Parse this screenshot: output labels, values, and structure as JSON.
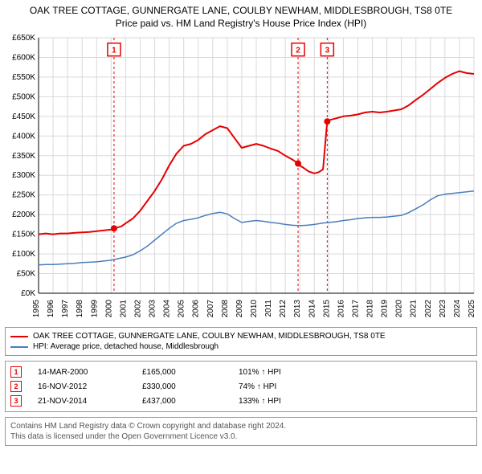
{
  "title_line1": "OAK TREE COTTAGE, GUNNERGATE LANE, COULBY NEWHAM, MIDDLESBROUGH, TS8 0TE",
  "title_line2": "Price paid vs. HM Land Registry's House Price Index (HPI)",
  "chart": {
    "type": "line",
    "background_color": "#ffffff",
    "grid_color": "#d9d9d9",
    "axis_color": "#000000",
    "x": {
      "min": 1995,
      "max": 2025,
      "tick_step": 1
    },
    "y": {
      "min": 0,
      "max": 650000,
      "tick_step": 50000,
      "prefix": "£",
      "suffix": "K",
      "divide": 1000
    },
    "series": [
      {
        "name": "OAK TREE COTTAGE, GUNNERGATE LANE, COULBY NEWHAM, MIDDLESBROUGH, TS8 0TE",
        "color": "#e60000",
        "width": 2,
        "data": [
          [
            1995.0,
            150000
          ],
          [
            1995.5,
            152000
          ],
          [
            1996.0,
            150000
          ],
          [
            1996.5,
            152000
          ],
          [
            1997.0,
            152000
          ],
          [
            1997.5,
            154000
          ],
          [
            1998.0,
            155000
          ],
          [
            1998.5,
            156000
          ],
          [
            1999.0,
            158000
          ],
          [
            1999.5,
            160000
          ],
          [
            2000.0,
            162000
          ],
          [
            2000.2,
            165000
          ],
          [
            2000.7,
            170000
          ],
          [
            2001.0,
            178000
          ],
          [
            2001.5,
            190000
          ],
          [
            2002.0,
            210000
          ],
          [
            2002.5,
            235000
          ],
          [
            2003.0,
            260000
          ],
          [
            2003.5,
            290000
          ],
          [
            2004.0,
            325000
          ],
          [
            2004.5,
            355000
          ],
          [
            2005.0,
            375000
          ],
          [
            2005.5,
            380000
          ],
          [
            2006.0,
            390000
          ],
          [
            2006.5,
            405000
          ],
          [
            2007.0,
            415000
          ],
          [
            2007.5,
            425000
          ],
          [
            2008.0,
            420000
          ],
          [
            2008.5,
            395000
          ],
          [
            2009.0,
            370000
          ],
          [
            2009.5,
            375000
          ],
          [
            2010.0,
            380000
          ],
          [
            2010.5,
            375000
          ],
          [
            2011.0,
            368000
          ],
          [
            2011.5,
            362000
          ],
          [
            2012.0,
            350000
          ],
          [
            2012.5,
            340000
          ],
          [
            2012.88,
            330000
          ],
          [
            2013.0,
            325000
          ],
          [
            2013.3,
            318000
          ],
          [
            2013.6,
            310000
          ],
          [
            2014.0,
            305000
          ],
          [
            2014.3,
            308000
          ],
          [
            2014.6,
            315000
          ],
          [
            2014.89,
            437000
          ],
          [
            2015.0,
            440000
          ],
          [
            2015.5,
            445000
          ],
          [
            2016.0,
            450000
          ],
          [
            2016.5,
            452000
          ],
          [
            2017.0,
            455000
          ],
          [
            2017.5,
            460000
          ],
          [
            2018.0,
            462000
          ],
          [
            2018.5,
            460000
          ],
          [
            2019.0,
            462000
          ],
          [
            2019.5,
            465000
          ],
          [
            2020.0,
            468000
          ],
          [
            2020.5,
            478000
          ],
          [
            2021.0,
            492000
          ],
          [
            2021.5,
            505000
          ],
          [
            2022.0,
            520000
          ],
          [
            2022.5,
            535000
          ],
          [
            2023.0,
            548000
          ],
          [
            2023.5,
            558000
          ],
          [
            2024.0,
            565000
          ],
          [
            2024.5,
            560000
          ],
          [
            2025.0,
            558000
          ]
        ]
      },
      {
        "name": "HPI: Average price, detached house, Middlesbrough",
        "color": "#4a7ebb",
        "width": 1.5,
        "data": [
          [
            1995.0,
            72000
          ],
          [
            1995.5,
            73000
          ],
          [
            1996.0,
            73000
          ],
          [
            1996.5,
            74000
          ],
          [
            1997.0,
            75000
          ],
          [
            1997.5,
            76000
          ],
          [
            1998.0,
            78000
          ],
          [
            1998.5,
            79000
          ],
          [
            1999.0,
            80000
          ],
          [
            1999.5,
            82000
          ],
          [
            2000.0,
            84000
          ],
          [
            2000.5,
            88000
          ],
          [
            2001.0,
            92000
          ],
          [
            2001.5,
            98000
          ],
          [
            2002.0,
            108000
          ],
          [
            2002.5,
            120000
          ],
          [
            2003.0,
            135000
          ],
          [
            2003.5,
            150000
          ],
          [
            2004.0,
            165000
          ],
          [
            2004.5,
            178000
          ],
          [
            2005.0,
            185000
          ],
          [
            2005.5,
            188000
          ],
          [
            2006.0,
            192000
          ],
          [
            2006.5,
            198000
          ],
          [
            2007.0,
            203000
          ],
          [
            2007.5,
            206000
          ],
          [
            2008.0,
            202000
          ],
          [
            2008.5,
            190000
          ],
          [
            2009.0,
            180000
          ],
          [
            2009.5,
            183000
          ],
          [
            2010.0,
            185000
          ],
          [
            2010.5,
            183000
          ],
          [
            2011.0,
            180000
          ],
          [
            2011.5,
            178000
          ],
          [
            2012.0,
            175000
          ],
          [
            2012.5,
            173000
          ],
          [
            2013.0,
            172000
          ],
          [
            2013.5,
            173000
          ],
          [
            2014.0,
            175000
          ],
          [
            2014.5,
            178000
          ],
          [
            2015.0,
            180000
          ],
          [
            2015.5,
            182000
          ],
          [
            2016.0,
            185000
          ],
          [
            2016.5,
            187000
          ],
          [
            2017.0,
            190000
          ],
          [
            2017.5,
            192000
          ],
          [
            2018.0,
            193000
          ],
          [
            2018.5,
            193000
          ],
          [
            2019.0,
            194000
          ],
          [
            2019.5,
            196000
          ],
          [
            2020.0,
            198000
          ],
          [
            2020.5,
            205000
          ],
          [
            2021.0,
            215000
          ],
          [
            2021.5,
            225000
          ],
          [
            2022.0,
            238000
          ],
          [
            2022.5,
            248000
          ],
          [
            2023.0,
            252000
          ],
          [
            2023.5,
            254000
          ],
          [
            2024.0,
            256000
          ],
          [
            2024.5,
            258000
          ],
          [
            2025.0,
            260000
          ]
        ]
      }
    ],
    "markers": [
      {
        "n": 1,
        "x": 2000.2,
        "y": 165000,
        "badge_y": 620000,
        "color": "#e60000"
      },
      {
        "n": 2,
        "x": 2012.88,
        "y": 330000,
        "badge_y": 620000,
        "color": "#e60000"
      },
      {
        "n": 3,
        "x": 2014.89,
        "y": 437000,
        "badge_y": 620000,
        "color": "#e60000"
      }
    ]
  },
  "legend": {
    "items": [
      {
        "color": "#e60000",
        "label": "OAK TREE COTTAGE, GUNNERGATE LANE, COULBY NEWHAM, MIDDLESBROUGH, TS8 0TE"
      },
      {
        "color": "#4a7ebb",
        "label": "HPI: Average price, detached house, Middlesbrough"
      }
    ]
  },
  "sales": [
    {
      "n": "1",
      "date": "14-MAR-2000",
      "price": "£165,000",
      "hpi": "101% ↑ HPI",
      "color": "#e60000"
    },
    {
      "n": "2",
      "date": "16-NOV-2012",
      "price": "£330,000",
      "hpi": "74% ↑ HPI",
      "color": "#e60000"
    },
    {
      "n": "3",
      "date": "21-NOV-2014",
      "price": "£437,000",
      "hpi": "133% ↑ HPI",
      "color": "#e60000"
    }
  ],
  "footer_line1": "Contains HM Land Registry data © Crown copyright and database right 2024.",
  "footer_line2": "This data is licensed under the Open Government Licence v3.0."
}
